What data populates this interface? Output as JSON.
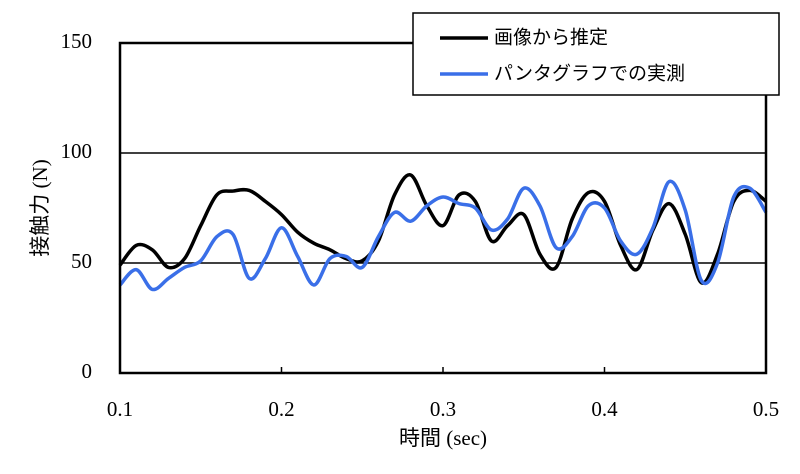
{
  "chart_data": {
    "type": "line",
    "x_label": "時間 (sec)",
    "y_label": "接触力 (N)",
    "x": [
      0.1,
      0.11,
      0.12,
      0.13,
      0.14,
      0.15,
      0.16,
      0.17,
      0.18,
      0.19,
      0.2,
      0.21,
      0.22,
      0.23,
      0.24,
      0.25,
      0.26,
      0.27,
      0.28,
      0.29,
      0.3,
      0.31,
      0.32,
      0.33,
      0.34,
      0.35,
      0.36,
      0.37,
      0.38,
      0.39,
      0.4,
      0.41,
      0.42,
      0.43,
      0.44,
      0.45,
      0.46,
      0.47,
      0.48,
      0.49,
      0.5
    ],
    "series": [
      {
        "name": "画像から推定",
        "color": "#000000",
        "values": [
          49,
          58,
          56,
          48,
          52,
          67,
          81,
          82.7,
          83,
          78,
          72,
          64,
          59,
          56,
          52,
          51,
          60,
          81,
          90,
          76,
          67,
          81,
          78,
          60,
          67,
          72,
          54,
          48,
          70,
          82,
          78,
          58,
          47,
          65,
          77,
          63,
          41,
          54,
          78,
          83,
          78
        ]
      },
      {
        "name": "パンタグラフでの実測",
        "color": "#3a6fe8",
        "values": [
          40,
          47,
          38,
          43,
          48,
          51,
          62,
          63,
          43,
          52,
          66,
          53,
          40,
          52,
          53,
          48,
          62,
          73,
          69,
          76,
          80,
          77,
          75,
          65,
          70,
          84,
          76,
          57,
          62,
          76,
          75,
          60,
          54,
          66,
          87,
          74,
          42,
          50,
          80,
          84,
          73
        ]
      }
    ],
    "xlim": [
      0.1,
      0.5
    ],
    "xticks": [
      0.1,
      0.2,
      0.3,
      0.4,
      0.5
    ],
    "ylim": [
      0,
      150
    ],
    "yticks": [
      0,
      50,
      100,
      150
    ],
    "grid": true
  }
}
